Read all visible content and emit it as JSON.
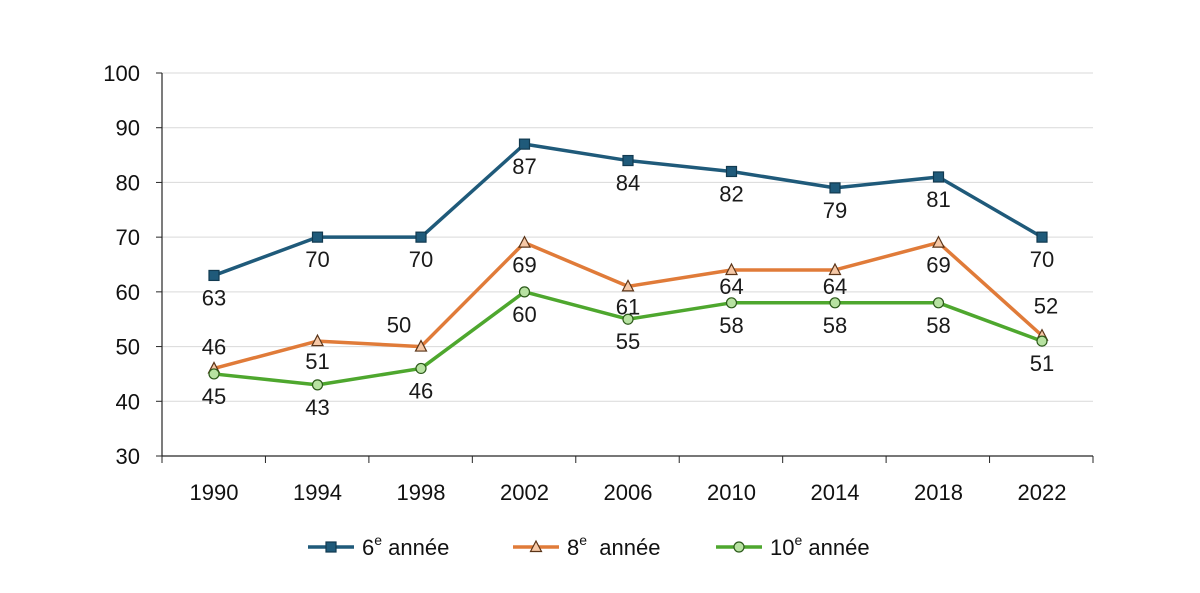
{
  "chart_data": {
    "type": "line",
    "title": "",
    "xlabel": "",
    "ylabel": "",
    "x": [
      "1990",
      "1994",
      "1998",
      "2002",
      "2006",
      "2010",
      "2014",
      "2018",
      "2022"
    ],
    "ylim": [
      30,
      100
    ],
    "yticks": [
      30,
      40,
      50,
      60,
      70,
      80,
      90,
      100
    ],
    "grid": true,
    "legend_position": "bottom",
    "series": [
      {
        "name": "6e année",
        "name_base": "6",
        "name_sup": "e",
        "name_rest": " année",
        "color": "#1f5a7a",
        "marker": "square",
        "values": [
          63,
          70,
          70,
          87,
          84,
          82,
          79,
          81,
          70
        ],
        "label_position": "below"
      },
      {
        "name": "8e année",
        "name_base": "8",
        "name_sup": "e",
        "name_rest": "  année",
        "color": "#e07b39",
        "marker": "triangle",
        "values": [
          46,
          51,
          50,
          69,
          61,
          64,
          64,
          69,
          52
        ],
        "label_position": "mixed"
      },
      {
        "name": "10e année",
        "name_base": "10",
        "name_sup": "e",
        "name_rest": " année",
        "color": "#4ea72e",
        "marker": "circle",
        "values": [
          45,
          43,
          46,
          60,
          55,
          58,
          58,
          58,
          51
        ],
        "label_position": "below"
      }
    ]
  }
}
